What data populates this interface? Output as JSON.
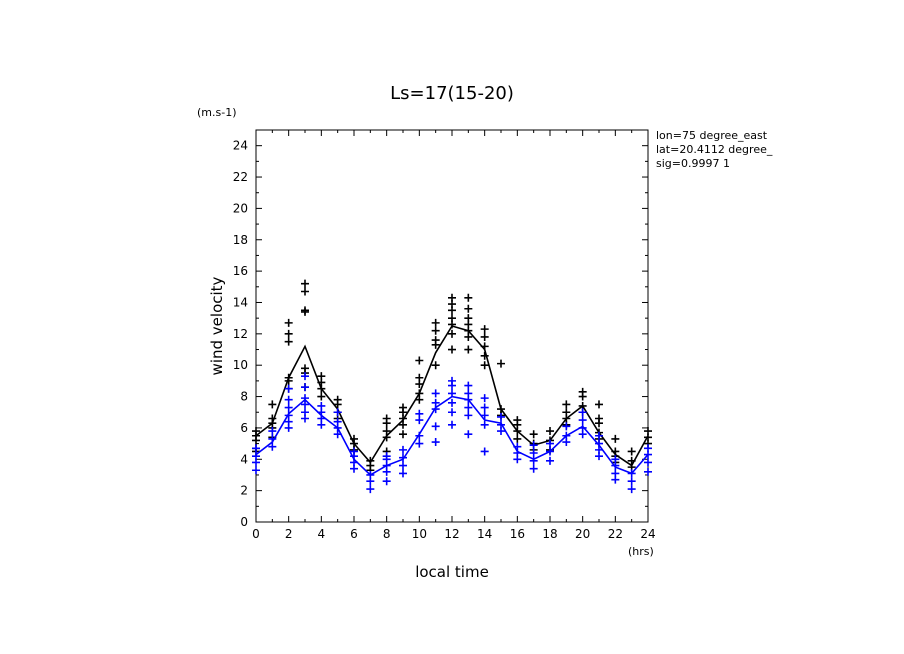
{
  "chart_data": {
    "type": "line",
    "title": "Ls=17(15-20)",
    "xlabel": "local time",
    "ylabel": "wind velocity",
    "x_unit": "(hrs)",
    "y_unit": "(m.s-1)",
    "xlim": [
      0,
      24
    ],
    "ylim": [
      0,
      25
    ],
    "x_ticks": [
      0,
      2,
      4,
      6,
      8,
      10,
      12,
      14,
      16,
      18,
      20,
      22,
      24
    ],
    "y_ticks": [
      0,
      2,
      4,
      6,
      8,
      10,
      12,
      14,
      16,
      18,
      20,
      22,
      24
    ],
    "grid": false,
    "info": {
      "lon": "lon=75 degree_east",
      "lat": "lat=20.4112 degree_",
      "sig": "sig=0.9997 1"
    },
    "colors": {
      "black_series": "#000000",
      "blue_series": "#0000ff"
    },
    "x": [
      0,
      1,
      2,
      3,
      4,
      5,
      6,
      7,
      8,
      9,
      10,
      11,
      12,
      13,
      14,
      15,
      16,
      17,
      18,
      19,
      20,
      21,
      22,
      23,
      24
    ],
    "series": [
      {
        "color": "#000000",
        "mean": [
          5.5,
          6.3,
          9.2,
          11.2,
          8.5,
          7.2,
          5.0,
          3.8,
          5.5,
          6.5,
          8.2,
          10.8,
          12.5,
          12.2,
          11.0,
          7.2,
          5.8,
          4.9,
          5.2,
          6.6,
          7.4,
          5.7,
          4.3,
          3.6,
          5.5
        ],
        "points": [
          [
            0,
            5.2
          ],
          [
            0,
            5.5
          ],
          [
            0,
            5.8
          ],
          [
            0,
            4.7
          ],
          [
            0,
            4.5
          ],
          [
            1,
            6.0
          ],
          [
            1,
            6.3
          ],
          [
            1,
            6.6
          ],
          [
            1,
            7.5
          ],
          [
            1,
            5.4
          ],
          [
            2,
            9.0
          ],
          [
            2,
            9.2
          ],
          [
            2,
            11.5
          ],
          [
            2,
            12.0
          ],
          [
            2,
            12.7
          ],
          [
            2,
            8.5
          ],
          [
            3,
            9.5
          ],
          [
            3,
            9.8
          ],
          [
            3,
            13.4
          ],
          [
            3,
            13.5
          ],
          [
            3,
            14.7
          ],
          [
            3,
            15.2
          ],
          [
            3,
            8.6
          ],
          [
            4,
            8.0
          ],
          [
            4,
            8.5
          ],
          [
            4,
            8.9
          ],
          [
            4,
            9.3
          ],
          [
            5,
            6.6
          ],
          [
            5,
            7.0
          ],
          [
            5,
            7.5
          ],
          [
            5,
            7.8
          ],
          [
            6,
            4.6
          ],
          [
            6,
            5.0
          ],
          [
            6,
            5.3
          ],
          [
            7,
            3.3
          ],
          [
            7,
            3.6
          ],
          [
            7,
            3.9
          ],
          [
            8,
            4.5
          ],
          [
            8,
            5.4
          ],
          [
            8,
            5.8
          ],
          [
            8,
            6.3
          ],
          [
            8,
            6.6
          ],
          [
            9,
            5.6
          ],
          [
            9,
            6.2
          ],
          [
            9,
            6.6
          ],
          [
            9,
            7.0
          ],
          [
            9,
            7.3
          ],
          [
            10,
            7.8
          ],
          [
            10,
            8.2
          ],
          [
            10,
            8.8
          ],
          [
            10,
            9.2
          ],
          [
            10,
            10.3
          ],
          [
            11,
            10.0
          ],
          [
            11,
            11.3
          ],
          [
            11,
            11.6
          ],
          [
            11,
            12.2
          ],
          [
            11,
            12.7
          ],
          [
            12,
            11.0
          ],
          [
            12,
            12.0
          ],
          [
            12,
            12.6
          ],
          [
            12,
            13.0
          ],
          [
            12,
            13.5
          ],
          [
            12,
            13.9
          ],
          [
            12,
            14.3
          ],
          [
            13,
            11.0
          ],
          [
            13,
            11.8
          ],
          [
            13,
            12.2
          ],
          [
            13,
            12.6
          ],
          [
            13,
            13.0
          ],
          [
            13,
            13.6
          ],
          [
            13,
            14.3
          ],
          [
            14,
            10.0
          ],
          [
            14,
            10.6
          ],
          [
            14,
            11.2
          ],
          [
            14,
            11.8
          ],
          [
            14,
            12.3
          ],
          [
            15,
            6.8
          ],
          [
            15,
            7.2
          ],
          [
            15,
            10.1
          ],
          [
            16,
            5.3
          ],
          [
            16,
            5.8
          ],
          [
            16,
            6.2
          ],
          [
            16,
            6.5
          ],
          [
            17,
            4.6
          ],
          [
            17,
            5.0
          ],
          [
            17,
            5.6
          ],
          [
            18,
            4.6
          ],
          [
            18,
            5.2
          ],
          [
            18,
            5.8
          ],
          [
            19,
            6.2
          ],
          [
            19,
            6.6
          ],
          [
            19,
            7.0
          ],
          [
            19,
            7.5
          ],
          [
            20,
            7.0
          ],
          [
            20,
            7.4
          ],
          [
            20,
            8.0
          ],
          [
            20,
            8.3
          ],
          [
            21,
            5.3
          ],
          [
            21,
            5.7
          ],
          [
            21,
            6.3
          ],
          [
            21,
            6.6
          ],
          [
            21,
            7.5
          ],
          [
            22,
            3.8
          ],
          [
            22,
            4.2
          ],
          [
            22,
            4.5
          ],
          [
            22,
            5.3
          ],
          [
            23,
            3.5
          ],
          [
            23,
            3.9
          ],
          [
            23,
            4.5
          ],
          [
            24,
            5.0
          ],
          [
            24,
            5.4
          ],
          [
            24,
            5.8
          ]
        ]
      },
      {
        "color": "#0000ff",
        "mean": [
          4.3,
          5.1,
          6.9,
          7.8,
          6.8,
          6.0,
          4.0,
          3.0,
          3.6,
          4.0,
          5.6,
          7.3,
          8.0,
          7.8,
          6.5,
          6.3,
          4.5,
          4.0,
          4.5,
          5.5,
          6.1,
          4.9,
          3.5,
          3.1,
          4.3
        ],
        "points": [
          [
            0,
            3.3
          ],
          [
            0,
            3.8
          ],
          [
            0,
            4.2
          ],
          [
            0,
            4.7
          ],
          [
            1,
            4.8
          ],
          [
            1,
            5.3
          ],
          [
            1,
            5.8
          ],
          [
            2,
            6.0
          ],
          [
            2,
            6.4
          ],
          [
            2,
            6.8
          ],
          [
            2,
            7.3
          ],
          [
            2,
            7.8
          ],
          [
            2,
            8.5
          ],
          [
            3,
            6.6
          ],
          [
            3,
            7.0
          ],
          [
            3,
            7.5
          ],
          [
            3,
            7.9
          ],
          [
            3,
            8.6
          ],
          [
            3,
            9.3
          ],
          [
            4,
            6.2
          ],
          [
            4,
            6.6
          ],
          [
            4,
            7.0
          ],
          [
            4,
            7.4
          ],
          [
            5,
            5.6
          ],
          [
            5,
            6.0
          ],
          [
            5,
            6.4
          ],
          [
            5,
            7.0
          ],
          [
            6,
            3.4
          ],
          [
            6,
            3.8
          ],
          [
            6,
            4.2
          ],
          [
            6,
            4.5
          ],
          [
            7,
            2.1
          ],
          [
            7,
            2.6
          ],
          [
            7,
            3.0
          ],
          [
            8,
            2.6
          ],
          [
            8,
            3.2
          ],
          [
            8,
            3.6
          ],
          [
            8,
            4.0
          ],
          [
            8,
            4.2
          ],
          [
            9,
            3.1
          ],
          [
            9,
            3.6
          ],
          [
            9,
            4.1
          ],
          [
            9,
            4.6
          ],
          [
            10,
            5.0
          ],
          [
            10,
            5.5
          ],
          [
            10,
            6.5
          ],
          [
            10,
            6.9
          ],
          [
            11,
            5.1
          ],
          [
            11,
            6.1
          ],
          [
            11,
            7.2
          ],
          [
            11,
            7.6
          ],
          [
            11,
            8.2
          ],
          [
            12,
            6.2
          ],
          [
            12,
            7.0
          ],
          [
            12,
            7.6
          ],
          [
            12,
            8.2
          ],
          [
            12,
            8.7
          ],
          [
            12,
            9.0
          ],
          [
            13,
            5.6
          ],
          [
            13,
            6.8
          ],
          [
            13,
            7.3
          ],
          [
            13,
            7.8
          ],
          [
            13,
            8.2
          ],
          [
            13,
            8.7
          ],
          [
            14,
            4.5
          ],
          [
            14,
            6.2
          ],
          [
            14,
            6.8
          ],
          [
            14,
            7.3
          ],
          [
            14,
            7.9
          ],
          [
            15,
            5.8
          ],
          [
            15,
            6.2
          ],
          [
            15,
            6.7
          ],
          [
            16,
            4.0
          ],
          [
            16,
            4.4
          ],
          [
            16,
            4.8
          ],
          [
            17,
            3.4
          ],
          [
            17,
            3.9
          ],
          [
            17,
            4.4
          ],
          [
            17,
            4.9
          ],
          [
            18,
            3.9
          ],
          [
            18,
            4.5
          ],
          [
            18,
            5.0
          ],
          [
            19,
            5.1
          ],
          [
            19,
            5.5
          ],
          [
            19,
            6.1
          ],
          [
            20,
            5.6
          ],
          [
            20,
            6.0
          ],
          [
            20,
            6.5
          ],
          [
            20,
            7.0
          ],
          [
            21,
            4.2
          ],
          [
            21,
            4.6
          ],
          [
            21,
            5.0
          ],
          [
            21,
            5.5
          ],
          [
            22,
            2.7
          ],
          [
            22,
            3.1
          ],
          [
            22,
            3.6
          ],
          [
            22,
            4.0
          ],
          [
            23,
            2.1
          ],
          [
            23,
            2.6
          ],
          [
            23,
            3.1
          ],
          [
            24,
            3.2
          ],
          [
            24,
            3.8
          ],
          [
            24,
            4.3
          ],
          [
            24,
            4.7
          ]
        ]
      }
    ]
  }
}
